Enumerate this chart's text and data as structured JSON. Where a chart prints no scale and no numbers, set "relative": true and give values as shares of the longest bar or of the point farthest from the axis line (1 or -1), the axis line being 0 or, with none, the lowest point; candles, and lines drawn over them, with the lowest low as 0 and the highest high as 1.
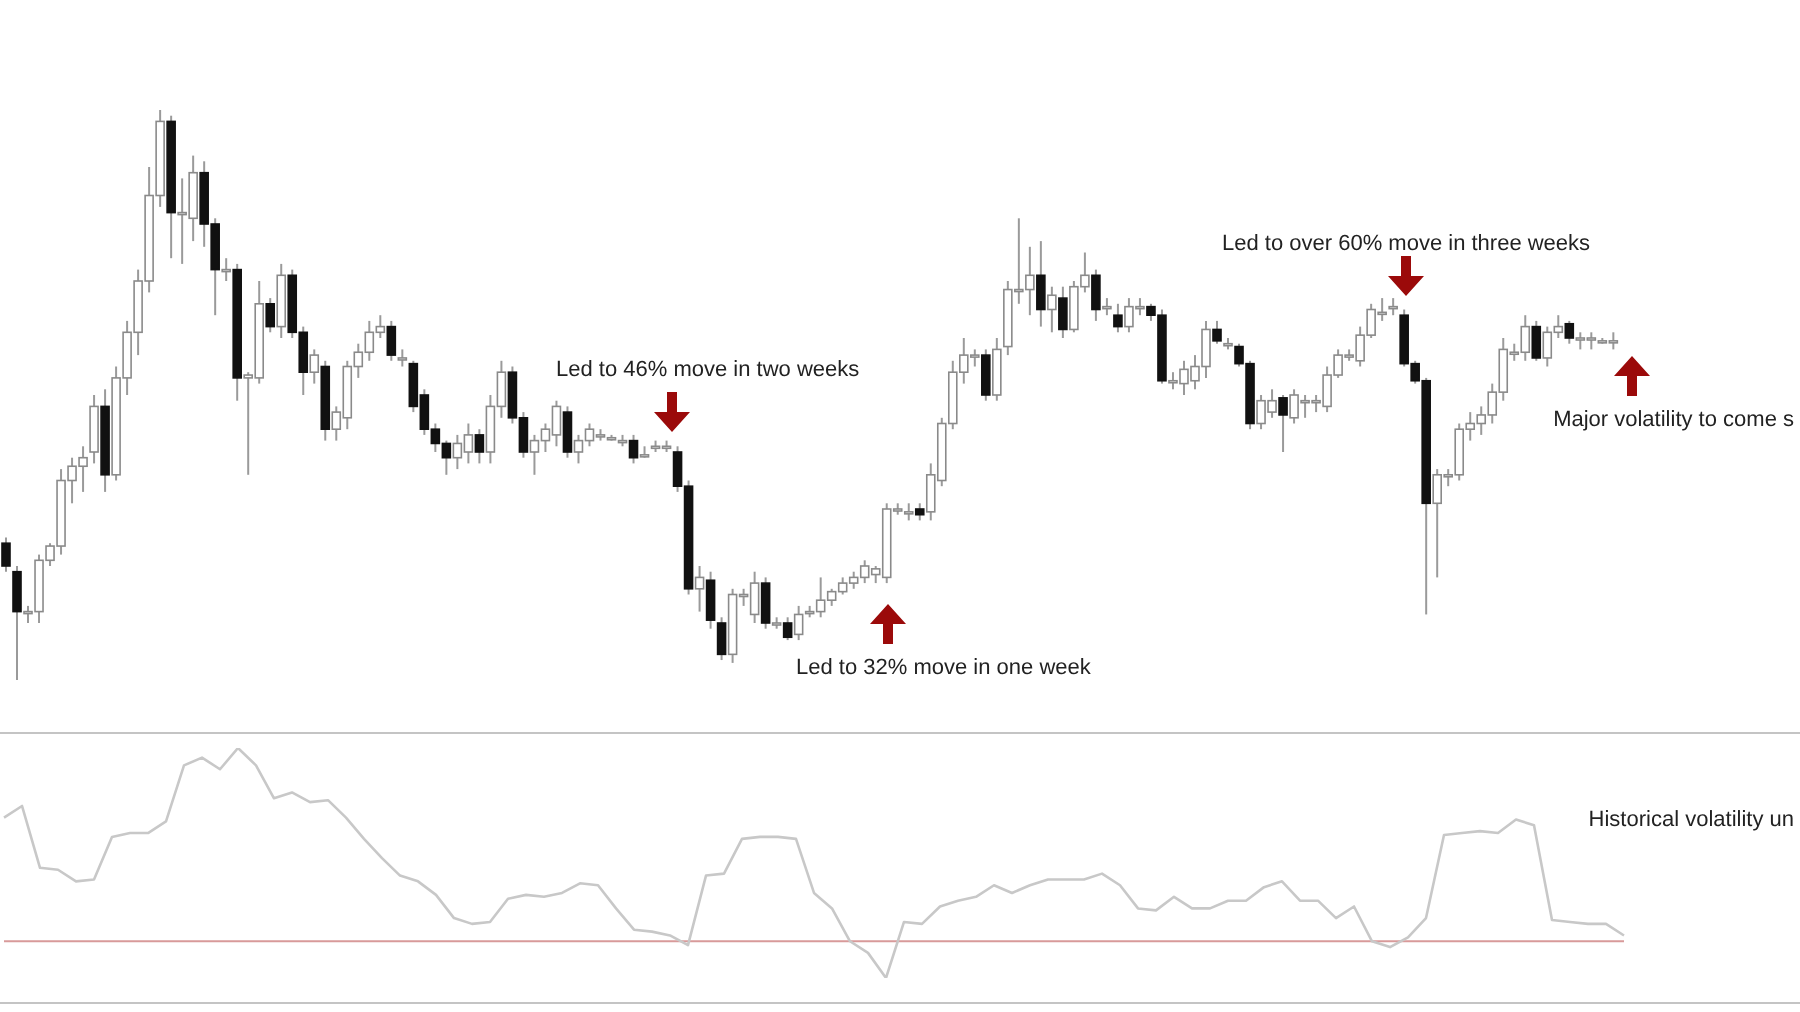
{
  "chart_data": [
    {
      "type": "candlestick",
      "relative": true,
      "categories": [
        null,
        null,
        null,
        null,
        null,
        null,
        null,
        null,
        null,
        null,
        null,
        null,
        null,
        null,
        null,
        null,
        null,
        null,
        null,
        null,
        null,
        null,
        null,
        null,
        null,
        null,
        null,
        null,
        null,
        null,
        null,
        null,
        null,
        null,
        null,
        null,
        null,
        null,
        null,
        null,
        null,
        null,
        null,
        null,
        null,
        null,
        null,
        null,
        null,
        null,
        null,
        null,
        null,
        null,
        null,
        null,
        null,
        null,
        null,
        null,
        null,
        null,
        null,
        null,
        null,
        null,
        null,
        null,
        null,
        null,
        null,
        null,
        null,
        null,
        null,
        null,
        null,
        null,
        null,
        null,
        null,
        null,
        null,
        null,
        null,
        null,
        null,
        null,
        null,
        null,
        null,
        null,
        null,
        null,
        null,
        null,
        null,
        null,
        null,
        null,
        null,
        null,
        null,
        null,
        null,
        null,
        null,
        null,
        null,
        null,
        null,
        null,
        null,
        null,
        null,
        null,
        null,
        null,
        null,
        null,
        null,
        null,
        null,
        null,
        null,
        null,
        null,
        null,
        null,
        null,
        null,
        null,
        null,
        null,
        null,
        null,
        null,
        null,
        null,
        null,
        null,
        null,
        null,
        null,
        null,
        null,
        null
      ],
      "ohlc": [
        [
          0.24,
          0.25,
          0.19,
          0.2
        ],
        [
          0.19,
          0.2,
          0,
          0.12
        ],
        [
          0.12,
          0.13,
          0.1,
          0.12
        ],
        [
          0.12,
          0.22,
          0.1,
          0.21
        ],
        [
          0.21,
          0.24,
          0.2,
          0.235
        ],
        [
          0.235,
          0.37,
          0.22,
          0.35
        ],
        [
          0.35,
          0.39,
          0.31,
          0.375
        ],
        [
          0.375,
          0.41,
          0.33,
          0.39
        ],
        [
          0.4,
          0.5,
          0.38,
          0.48
        ],
        [
          0.48,
          0.51,
          0.33,
          0.36
        ],
        [
          0.36,
          0.55,
          0.35,
          0.53
        ],
        [
          0.53,
          0.63,
          0.5,
          0.61
        ],
        [
          0.61,
          0.72,
          0.57,
          0.7
        ],
        [
          0.7,
          0.9,
          0.68,
          0.85
        ],
        [
          0.85,
          1,
          0.83,
          0.98
        ],
        [
          0.98,
          0.99,
          0.74,
          0.82
        ],
        [
          0.82,
          0.88,
          0.73,
          0.82
        ],
        [
          0.81,
          0.92,
          0.77,
          0.89
        ],
        [
          0.89,
          0.91,
          0.76,
          0.8
        ],
        [
          0.8,
          0.81,
          0.64,
          0.72
        ],
        [
          0.72,
          0.74,
          0.7,
          0.72
        ],
        [
          0.72,
          0.73,
          0.49,
          0.53
        ],
        [
          0.53,
          0.54,
          0.36,
          0.535
        ],
        [
          0.53,
          0.7,
          0.52,
          0.66
        ],
        [
          0.66,
          0.67,
          0.61,
          0.62
        ],
        [
          0.62,
          0.73,
          0.6,
          0.71
        ],
        [
          0.71,
          0.72,
          0.6,
          0.61
        ],
        [
          0.61,
          0.62,
          0.5,
          0.54
        ],
        [
          0.54,
          0.58,
          0.52,
          0.57
        ],
        [
          0.55,
          0.56,
          0.42,
          0.44
        ],
        [
          0.44,
          0.48,
          0.42,
          0.47
        ],
        [
          0.46,
          0.56,
          0.44,
          0.55
        ],
        [
          0.55,
          0.59,
          0.53,
          0.575
        ],
        [
          0.575,
          0.63,
          0.56,
          0.61
        ],
        [
          0.61,
          0.64,
          0.6,
          0.62
        ],
        [
          0.62,
          0.63,
          0.56,
          0.57
        ],
        [
          0.565,
          0.58,
          0.55,
          0.565
        ],
        [
          0.555,
          0.56,
          0.47,
          0.48
        ],
        [
          0.5,
          0.51,
          0.43,
          0.44
        ],
        [
          0.44,
          0.45,
          0.4,
          0.415
        ],
        [
          0.415,
          0.42,
          0.36,
          0.39
        ],
        [
          0.39,
          0.43,
          0.37,
          0.415
        ],
        [
          0.4,
          0.45,
          0.38,
          0.43
        ],
        [
          0.43,
          0.44,
          0.38,
          0.4
        ],
        [
          0.4,
          0.5,
          0.38,
          0.48
        ],
        [
          0.48,
          0.56,
          0.46,
          0.54
        ],
        [
          0.54,
          0.55,
          0.45,
          0.46
        ],
        [
          0.46,
          0.47,
          0.39,
          0.4
        ],
        [
          0.4,
          0.43,
          0.36,
          0.42
        ],
        [
          0.42,
          0.45,
          0.4,
          0.44
        ],
        [
          0.43,
          0.49,
          0.41,
          0.48
        ],
        [
          0.47,
          0.48,
          0.39,
          0.4
        ],
        [
          0.4,
          0.43,
          0.38,
          0.42
        ],
        [
          0.42,
          0.45,
          0.41,
          0.44
        ],
        [
          0.43,
          0.44,
          0.42,
          0.43
        ],
        [
          0.425,
          0.43,
          0.42,
          0.425
        ],
        [
          0.42,
          0.43,
          0.41,
          0.42
        ],
        [
          0.42,
          0.43,
          0.38,
          0.39
        ],
        [
          0.395,
          0.41,
          0.39,
          0.395
        ],
        [
          0.41,
          0.42,
          0.4,
          0.41
        ],
        [
          0.41,
          0.42,
          0.4,
          0.41
        ],
        [
          0.4,
          0.41,
          0.33,
          0.34
        ],
        [
          0.34,
          0.35,
          0.15,
          0.16
        ],
        [
          0.16,
          0.2,
          0.12,
          0.18
        ],
        [
          0.175,
          0.19,
          0.09,
          0.105
        ],
        [
          0.1,
          0.11,
          0.035,
          0.045
        ],
        [
          0.045,
          0.16,
          0.03,
          0.15
        ],
        [
          0.15,
          0.16,
          0.13,
          0.15
        ],
        [
          0.115,
          0.19,
          0.1,
          0.17
        ],
        [
          0.17,
          0.18,
          0.09,
          0.1
        ],
        [
          0.1,
          0.11,
          0.09,
          0.1
        ],
        [
          0.1,
          0.11,
          0.07,
          0.075
        ],
        [
          0.08,
          0.13,
          0.07,
          0.115
        ],
        [
          0.12,
          0.13,
          0.11,
          0.12
        ],
        [
          0.12,
          0.18,
          0.11,
          0.14
        ],
        [
          0.14,
          0.16,
          0.13,
          0.155
        ],
        [
          0.155,
          0.18,
          0.15,
          0.17
        ],
        [
          0.17,
          0.19,
          0.16,
          0.18
        ],
        [
          0.18,
          0.21,
          0.17,
          0.2
        ],
        [
          0.185,
          0.2,
          0.17,
          0.195
        ],
        [
          0.18,
          0.31,
          0.17,
          0.3
        ],
        [
          0.3,
          0.31,
          0.29,
          0.3
        ],
        [
          0.295,
          0.31,
          0.28,
          0.295
        ],
        [
          0.3,
          0.31,
          0.28,
          0.29
        ],
        [
          0.295,
          0.38,
          0.28,
          0.36
        ],
        [
          0.35,
          0.46,
          0.34,
          0.45
        ],
        [
          0.45,
          0.56,
          0.44,
          0.54
        ],
        [
          0.54,
          0.6,
          0.52,
          0.57
        ],
        [
          0.57,
          0.58,
          0.55,
          0.57
        ],
        [
          0.57,
          0.58,
          0.49,
          0.5
        ],
        [
          0.5,
          0.6,
          0.49,
          0.58
        ],
        [
          0.585,
          0.7,
          0.57,
          0.685
        ],
        [
          0.685,
          0.81,
          0.66,
          0.685
        ],
        [
          0.685,
          0.76,
          0.64,
          0.71
        ],
        [
          0.71,
          0.77,
          0.62,
          0.65
        ],
        [
          0.65,
          0.69,
          0.61,
          0.675
        ],
        [
          0.67,
          0.69,
          0.6,
          0.615
        ],
        [
          0.615,
          0.7,
          0.61,
          0.69
        ],
        [
          0.69,
          0.75,
          0.68,
          0.71
        ],
        [
          0.71,
          0.72,
          0.63,
          0.65
        ],
        [
          0.655,
          0.67,
          0.64,
          0.655
        ],
        [
          0.64,
          0.66,
          0.61,
          0.62
        ],
        [
          0.62,
          0.67,
          0.61,
          0.655
        ],
        [
          0.655,
          0.67,
          0.64,
          0.655
        ],
        [
          0.655,
          0.66,
          0.63,
          0.64
        ],
        [
          0.64,
          0.65,
          0.52,
          0.525
        ],
        [
          0.525,
          0.54,
          0.51,
          0.525
        ],
        [
          0.52,
          0.56,
          0.5,
          0.545
        ],
        [
          0.525,
          0.57,
          0.51,
          0.55
        ],
        [
          0.55,
          0.63,
          0.53,
          0.615
        ],
        [
          0.615,
          0.63,
          0.59,
          0.595
        ],
        [
          0.59,
          0.6,
          0.58,
          0.59
        ],
        [
          0.585,
          0.59,
          0.55,
          0.555
        ],
        [
          0.555,
          0.56,
          0.44,
          0.45
        ],
        [
          0.45,
          0.5,
          0.44,
          0.49
        ],
        [
          0.47,
          0.51,
          0.46,
          0.49
        ],
        [
          0.495,
          0.5,
          0.4,
          0.465
        ],
        [
          0.46,
          0.51,
          0.45,
          0.5
        ],
        [
          0.49,
          0.5,
          0.46,
          0.49
        ],
        [
          0.49,
          0.5,
          0.47,
          0.49
        ],
        [
          0.48,
          0.55,
          0.47,
          0.535
        ],
        [
          0.535,
          0.58,
          0.53,
          0.57
        ],
        [
          0.57,
          0.58,
          0.56,
          0.57
        ],
        [
          0.56,
          0.62,
          0.55,
          0.605
        ],
        [
          0.605,
          0.66,
          0.6,
          0.65
        ],
        [
          0.645,
          0.67,
          0.63,
          0.645
        ],
        [
          0.655,
          0.67,
          0.64,
          0.655
        ],
        [
          0.64,
          0.65,
          0.55,
          0.555
        ],
        [
          0.555,
          0.56,
          0.52,
          0.525
        ],
        [
          0.525,
          0.53,
          0.115,
          0.31
        ],
        [
          0.31,
          0.37,
          0.18,
          0.36
        ],
        [
          0.36,
          0.37,
          0.34,
          0.36
        ],
        [
          0.36,
          0.45,
          0.35,
          0.44
        ],
        [
          0.44,
          0.47,
          0.42,
          0.45
        ],
        [
          0.45,
          0.48,
          0.43,
          0.465
        ],
        [
          0.465,
          0.52,
          0.45,
          0.505
        ],
        [
          0.505,
          0.6,
          0.49,
          0.58
        ],
        [
          0.575,
          0.59,
          0.56,
          0.575
        ],
        [
          0.575,
          0.64,
          0.56,
          0.62
        ],
        [
          0.62,
          0.63,
          0.56,
          0.565
        ],
        [
          0.565,
          0.62,
          0.55,
          0.61
        ],
        [
          0.61,
          0.64,
          0.6,
          0.62
        ],
        [
          0.625,
          0.63,
          0.59,
          0.6
        ],
        [
          0.6,
          0.61,
          0.58,
          0.6
        ],
        [
          0.6,
          0.61,
          0.58,
          0.6
        ],
        [
          0.595,
          0.6,
          0.59,
          0.595
        ],
        [
          0.595,
          0.61,
          0.58,
          0.595
        ]
      ],
      "annotations": [
        "Led to 46% move in two weeks",
        "Led to 32% move in one week",
        "Led to over 60% move in three weeks",
        "Major volatility to come s"
      ]
    },
    {
      "type": "line",
      "relative": true,
      "categories": [
        null,
        null,
        null,
        null,
        null,
        null,
        null,
        null,
        null,
        null,
        null,
        null,
        null,
        null,
        null,
        null,
        null,
        null,
        null,
        null,
        null,
        null,
        null,
        null,
        null,
        null,
        null,
        null,
        null,
        null,
        null,
        null,
        null,
        null,
        null,
        null,
        null,
        null,
        null,
        null,
        null,
        null,
        null,
        null,
        null,
        null,
        null,
        null,
        null,
        null,
        null,
        null,
        null,
        null,
        null,
        null,
        null,
        null,
        null,
        null,
        null,
        null,
        null,
        null,
        null,
        null,
        null,
        null,
        null,
        null,
        null,
        null,
        null,
        null,
        null,
        null,
        null,
        null,
        null,
        null,
        null,
        null,
        null,
        null,
        null,
        null,
        null,
        null,
        null,
        null,
        null
      ],
      "series": [
        {
          "color": "#c8c8c8",
          "values": [
            0.64,
            0.7,
            0.38,
            0.37,
            0.31,
            0.32,
            0.54,
            0.56,
            0.56,
            0.62,
            0.91,
            0.95,
            0.89,
            1,
            0.91,
            0.74,
            0.77,
            0.72,
            0.73,
            0.64,
            0.53,
            0.43,
            0.34,
            0.31,
            0.24,
            0.12,
            0.09,
            0.1,
            0.22,
            0.24,
            0.23,
            0.25,
            0.3,
            0.29,
            0.17,
            0.06,
            0.05,
            0.03,
            -0.02,
            0.34,
            0.35,
            0.53,
            0.54,
            0.54,
            0.53,
            0.25,
            0.17,
            0.0,
            -0.06,
            -0.19,
            0.1,
            0.09,
            0.18,
            0.21,
            0.23,
            0.29,
            0.25,
            0.29,
            0.32,
            0.32,
            0.32,
            0.35,
            0.29,
            0.17,
            0.16,
            0.23,
            0.17,
            0.17,
            0.21,
            0.21,
            0.28,
            0.31,
            0.21,
            0.21,
            0.12,
            0.18,
            0.0,
            -0.03,
            0.02,
            0.12,
            0.55,
            0.56,
            0.57,
            0.56,
            0.63,
            0.6,
            0.11,
            0.1,
            0.09,
            0.09,
            0.03
          ]
        }
      ],
      "ref_lines": [
        {
          "axis": "y",
          "value": 0,
          "color": "#d89a9a"
        }
      ],
      "annotations": [
        "Historical volatility un"
      ]
    }
  ]
}
